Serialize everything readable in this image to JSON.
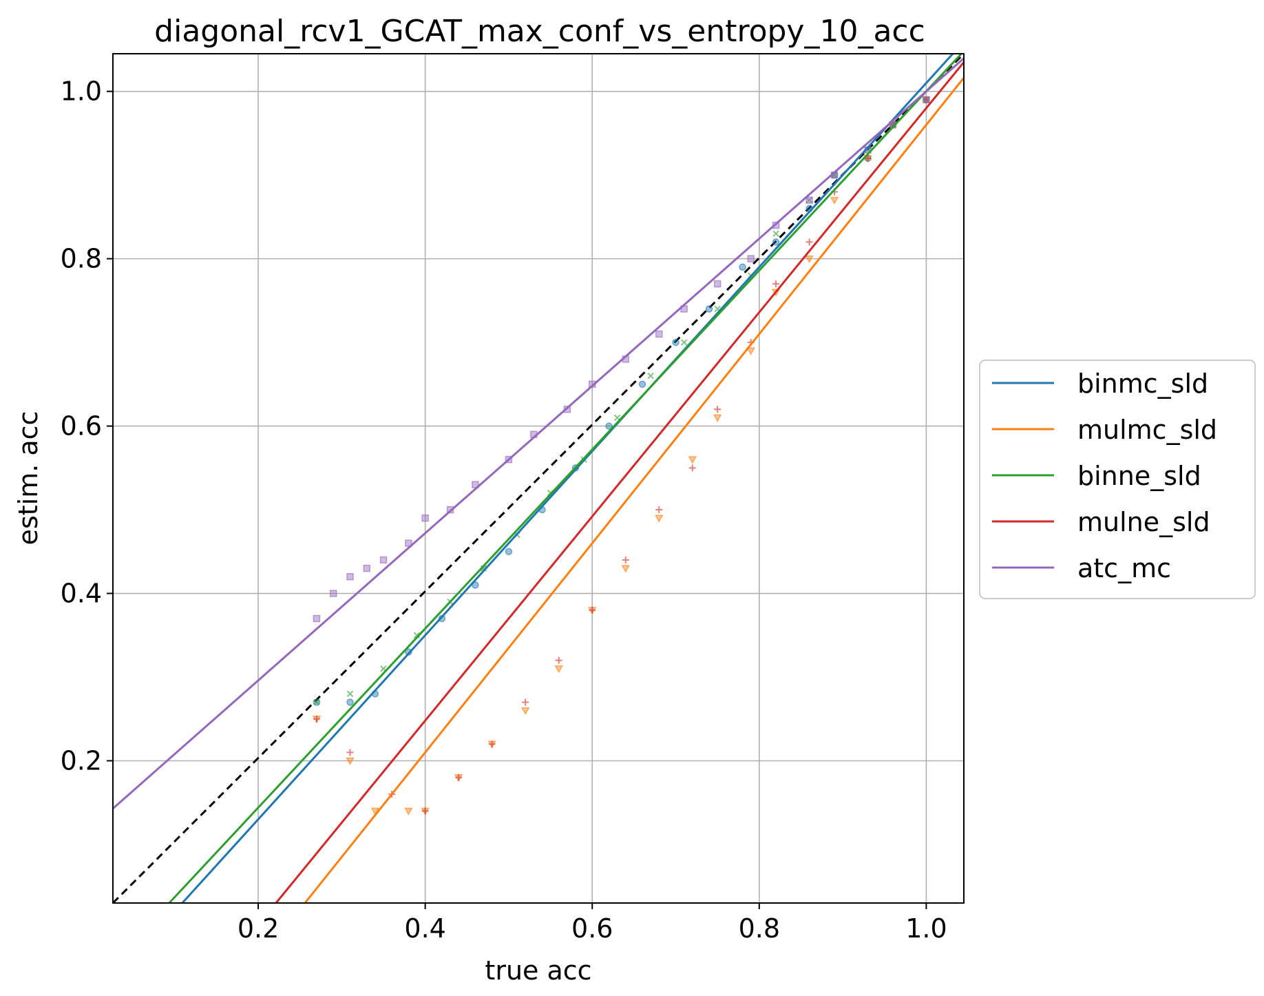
{
  "chart_data": {
    "type": "scatter",
    "title": "diagonal_rcv1_GCAT_max_conf_vs_entropy_10_acc",
    "xlabel": "true acc",
    "ylabel": "estim. acc",
    "xlim": [
      0.026,
      1.045
    ],
    "ylim": [
      0.03,
      1.045
    ],
    "xticks": [
      0.2,
      0.4,
      0.6,
      0.8,
      1.0
    ],
    "yticks": [
      0.2,
      0.4,
      0.6,
      0.8,
      1.0
    ],
    "xtick_labels": [
      "0.2",
      "0.4",
      "0.6",
      "0.8",
      "1.0"
    ],
    "ytick_labels": [
      "0.2",
      "0.4",
      "0.6",
      "0.8",
      "1.0"
    ],
    "grid": true,
    "legend_position": "right, outside plot",
    "diagonal": {
      "style": "dashed",
      "color": "#000000",
      "from": [
        0.026,
        0.03
      ],
      "to": [
        1.045,
        1.045
      ]
    },
    "series": [
      {
        "name": "binmc_sld",
        "color": "#1f77b4",
        "marker": "circle",
        "fit_line": {
          "slope": 1.1,
          "intercept": -0.09
        },
        "points": [
          [
            0.27,
            0.27
          ],
          [
            0.31,
            0.27
          ],
          [
            0.34,
            0.28
          ],
          [
            0.38,
            0.33
          ],
          [
            0.42,
            0.37
          ],
          [
            0.46,
            0.41
          ],
          [
            0.5,
            0.45
          ],
          [
            0.54,
            0.5
          ],
          [
            0.58,
            0.55
          ],
          [
            0.62,
            0.6
          ],
          [
            0.66,
            0.65
          ],
          [
            0.7,
            0.7
          ],
          [
            0.74,
            0.74
          ],
          [
            0.78,
            0.79
          ],
          [
            0.82,
            0.82
          ],
          [
            0.86,
            0.86
          ],
          [
            0.89,
            0.9
          ],
          [
            0.93,
            0.92
          ],
          [
            0.96,
            0.96
          ],
          [
            1.0,
            0.99
          ]
        ]
      },
      {
        "name": "mulmc_sld",
        "color": "#ff7f0e",
        "marker": "triangle-down",
        "fit_line": {
          "slope": 1.25,
          "intercept": -0.29
        },
        "points": [
          [
            0.27,
            0.25
          ],
          [
            0.31,
            0.2
          ],
          [
            0.34,
            0.14
          ],
          [
            0.38,
            0.14
          ],
          [
            0.4,
            0.14
          ],
          [
            0.44,
            0.18
          ],
          [
            0.48,
            0.22
          ],
          [
            0.52,
            0.26
          ],
          [
            0.56,
            0.31
          ],
          [
            0.6,
            0.38
          ],
          [
            0.64,
            0.43
          ],
          [
            0.68,
            0.49
          ],
          [
            0.72,
            0.56
          ],
          [
            0.75,
            0.61
          ],
          [
            0.79,
            0.69
          ],
          [
            0.82,
            0.76
          ],
          [
            0.86,
            0.8
          ],
          [
            0.89,
            0.87
          ],
          [
            0.93,
            0.92
          ],
          [
            0.96,
            0.96
          ],
          [
            1.0,
            0.99
          ]
        ]
      },
      {
        "name": "binne_sld",
        "color": "#2ca02c",
        "marker": "cross",
        "fit_line": {
          "slope": 1.07,
          "intercept": -0.07
        },
        "points": [
          [
            0.27,
            0.27
          ],
          [
            0.31,
            0.28
          ],
          [
            0.35,
            0.31
          ],
          [
            0.39,
            0.35
          ],
          [
            0.43,
            0.39
          ],
          [
            0.47,
            0.43
          ],
          [
            0.51,
            0.47
          ],
          [
            0.55,
            0.52
          ],
          [
            0.59,
            0.56
          ],
          [
            0.63,
            0.61
          ],
          [
            0.67,
            0.66
          ],
          [
            0.71,
            0.7
          ],
          [
            0.75,
            0.74
          ],
          [
            0.79,
            0.78
          ],
          [
            0.82,
            0.83
          ],
          [
            0.86,
            0.87
          ],
          [
            0.89,
            0.9
          ],
          [
            0.93,
            0.93
          ],
          [
            0.96,
            0.96
          ],
          [
            1.0,
            0.99
          ]
        ]
      },
      {
        "name": "mulne_sld",
        "color": "#d62728",
        "marker": "plus",
        "fit_line": {
          "slope": 1.22,
          "intercept": -0.24
        },
        "points": [
          [
            0.27,
            0.25
          ],
          [
            0.31,
            0.21
          ],
          [
            0.36,
            0.16
          ],
          [
            0.4,
            0.14
          ],
          [
            0.44,
            0.18
          ],
          [
            0.48,
            0.22
          ],
          [
            0.52,
            0.27
          ],
          [
            0.56,
            0.32
          ],
          [
            0.6,
            0.38
          ],
          [
            0.64,
            0.44
          ],
          [
            0.68,
            0.5
          ],
          [
            0.72,
            0.55
          ],
          [
            0.75,
            0.62
          ],
          [
            0.79,
            0.7
          ],
          [
            0.82,
            0.77
          ],
          [
            0.86,
            0.82
          ],
          [
            0.89,
            0.88
          ],
          [
            0.93,
            0.92
          ],
          [
            0.96,
            0.96
          ],
          [
            1.0,
            0.99
          ]
        ]
      },
      {
        "name": "atc_mc",
        "color": "#9467bd",
        "marker": "square",
        "fit_line": {
          "slope": 0.88,
          "intercept": 0.12
        },
        "points": [
          [
            0.27,
            0.37
          ],
          [
            0.29,
            0.4
          ],
          [
            0.31,
            0.42
          ],
          [
            0.33,
            0.43
          ],
          [
            0.35,
            0.44
          ],
          [
            0.38,
            0.46
          ],
          [
            0.4,
            0.49
          ],
          [
            0.43,
            0.5
          ],
          [
            0.46,
            0.53
          ],
          [
            0.5,
            0.56
          ],
          [
            0.53,
            0.59
          ],
          [
            0.57,
            0.62
          ],
          [
            0.6,
            0.65
          ],
          [
            0.64,
            0.68
          ],
          [
            0.68,
            0.71
          ],
          [
            0.71,
            0.74
          ],
          [
            0.75,
            0.77
          ],
          [
            0.79,
            0.8
          ],
          [
            0.82,
            0.84
          ],
          [
            0.86,
            0.87
          ],
          [
            0.89,
            0.9
          ],
          [
            0.93,
            0.93
          ],
          [
            0.96,
            0.96
          ],
          [
            1.0,
            0.99
          ]
        ]
      }
    ]
  }
}
